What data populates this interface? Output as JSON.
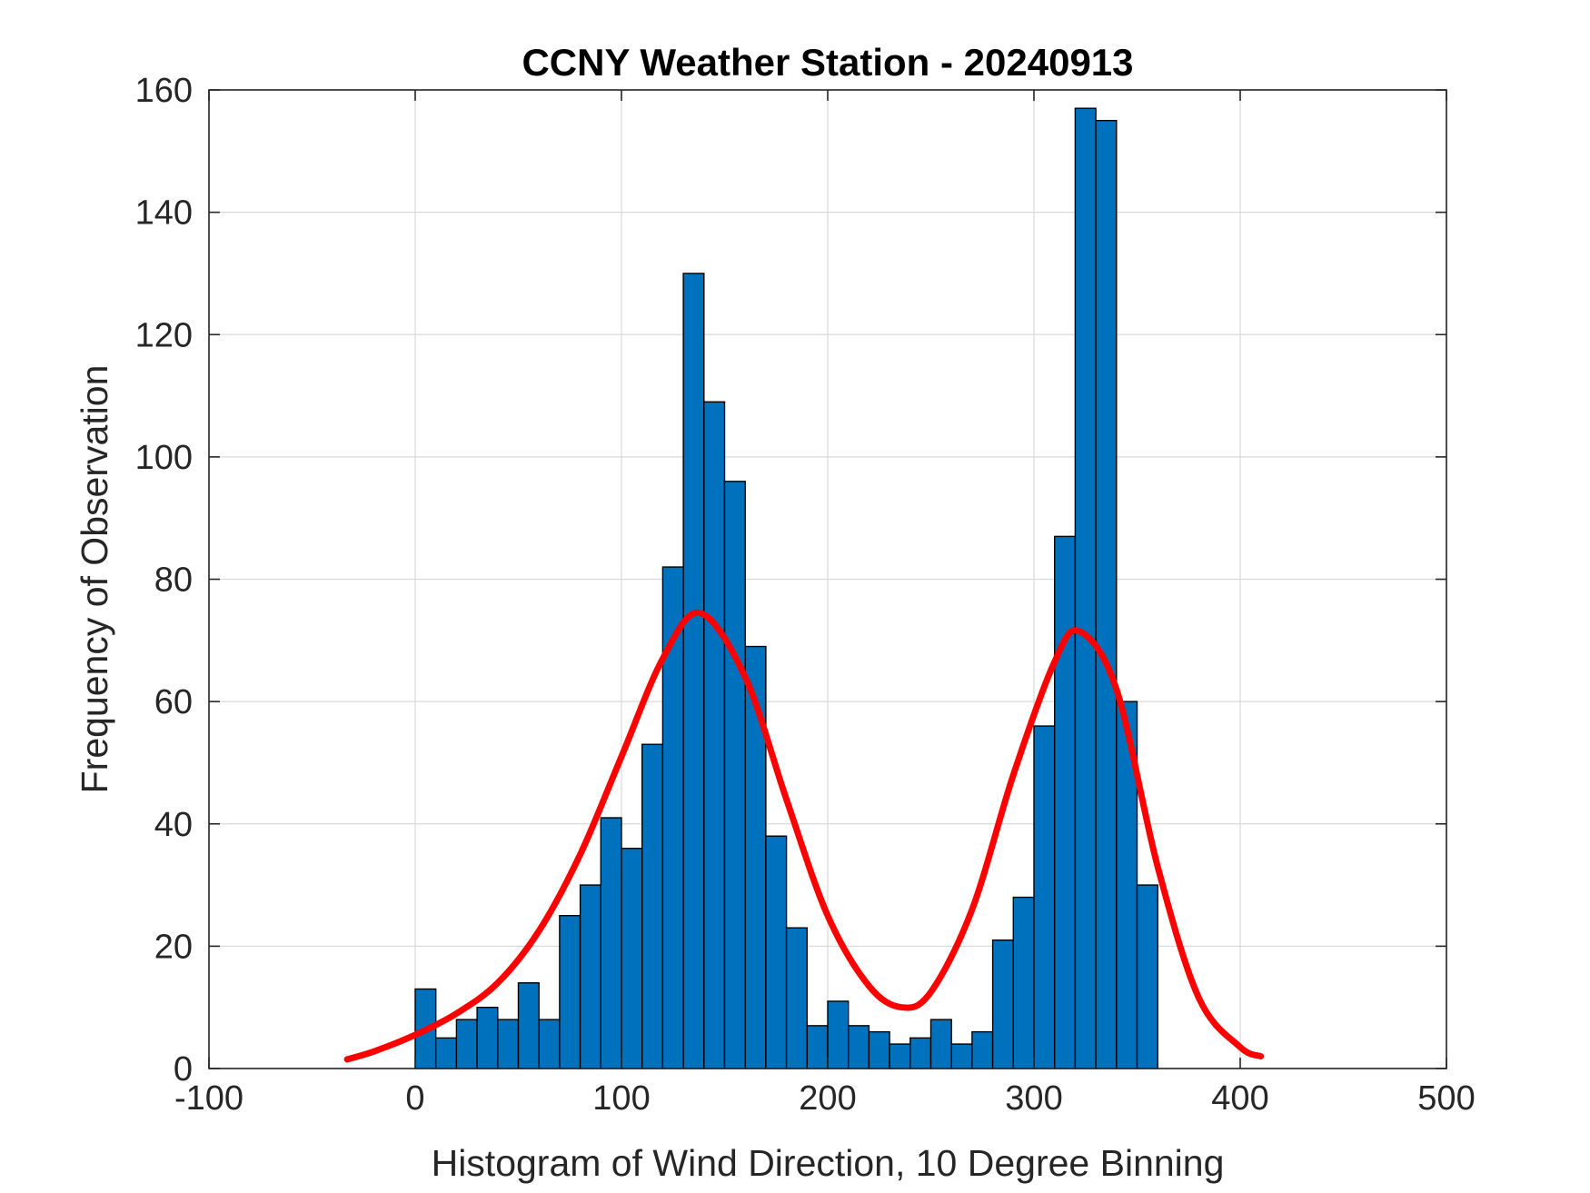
{
  "chart_data": {
    "type": "bar",
    "title": "CCNY Weather Station - 20240913",
    "xlabel": "Histogram of Wind Direction, 10 Degree Binning",
    "ylabel": "Frequency of Observation",
    "xlim": [
      -100,
      500
    ],
    "ylim": [
      0,
      160
    ],
    "xticks": [
      -100,
      0,
      100,
      200,
      300,
      400,
      500
    ],
    "yticks": [
      0,
      20,
      40,
      60,
      80,
      100,
      120,
      140,
      160
    ],
    "xtick_labels": [
      "-100",
      "0",
      "100",
      "200",
      "300",
      "400",
      "500"
    ],
    "ytick_labels": [
      "0",
      "20",
      "40",
      "60",
      "80",
      "100",
      "120",
      "140",
      "160"
    ],
    "grid": true,
    "bin_width": 10,
    "bin_edges_start": 0,
    "bar_color": "#0072BD",
    "bar_edge_color": "#000000",
    "values": [
      13,
      5,
      8,
      10,
      8,
      14,
      8,
      25,
      30,
      41,
      36,
      53,
      82,
      130,
      109,
      96,
      69,
      38,
      23,
      7,
      11,
      7,
      6,
      4,
      5,
      8,
      4,
      6,
      21,
      28,
      56,
      87,
      157,
      155,
      60,
      30
    ],
    "fit_curve": {
      "color": "#FF0000",
      "x": [
        -33,
        -20,
        0,
        20,
        40,
        60,
        80,
        100,
        120,
        138,
        160,
        180,
        200,
        220,
        236,
        250,
        270,
        290,
        310,
        322,
        340,
        360,
        380,
        400,
        410
      ],
      "y": [
        1.5,
        2.8,
        5.5,
        9,
        14,
        22.5,
        35,
        51,
        67,
        74.5,
        64,
        44,
        25,
        13.5,
        10,
        12.5,
        26,
        48,
        66.5,
        71.5,
        62,
        33,
        11.5,
        3.5,
        2
      ]
    }
  }
}
